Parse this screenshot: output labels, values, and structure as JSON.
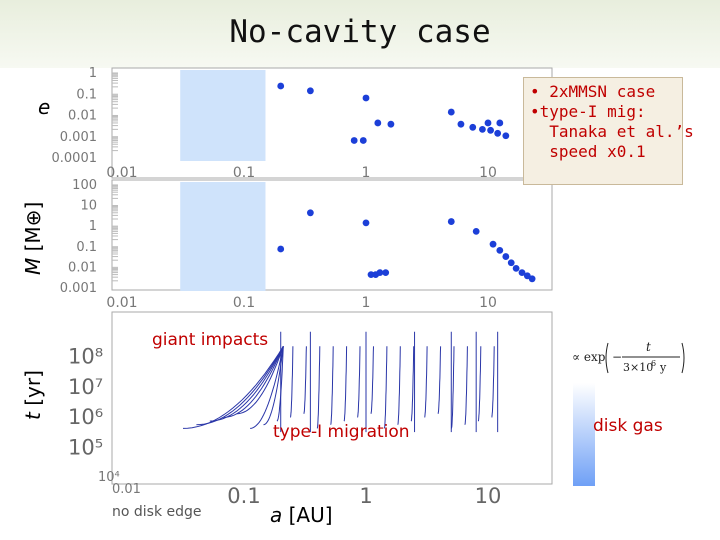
{
  "title": "No-cavity case",
  "note": [
    "• 2xMMSN case",
    "•type-I mig:",
    "  Tanaka et al.’s",
    "  speed x0.1"
  ],
  "labels": {
    "e": "e",
    "m_var": "M ",
    "m_unit": "[M⊕]",
    "t_var": "t ",
    "t_unit": "[yr]",
    "x_var": "a ",
    "x_unit": "[AU]"
  },
  "annotations": {
    "giant_impacts": "giant impacts",
    "type_i_migration": "type-I migration",
    "disk_gas": "disk gas",
    "no_disk_edge": "no disk edge"
  },
  "chart_data": [
    {
      "type": "scatter",
      "panel": "eccentricity",
      "ylabel": "e",
      "xscale": "log",
      "yscale": "log",
      "xlim": [
        0.01,
        50
      ],
      "ylim": [
        0.0001,
        1
      ],
      "xticks": [
        "0.01",
        "0.1",
        "1",
        "10"
      ],
      "yticks": [
        "1",
        "0.1",
        "0.01",
        "0.001",
        "0.0001"
      ],
      "shaded_xrange": [
        0.03,
        0.15
      ],
      "points": [
        [
          0.2,
          0.22
        ],
        [
          0.35,
          0.13
        ],
        [
          1.0,
          0.06
        ],
        [
          1.25,
          0.004
        ],
        [
          1.6,
          0.0035
        ],
        [
          0.8,
          0.0006
        ],
        [
          0.95,
          0.0006
        ],
        [
          5,
          0.013
        ],
        [
          6,
          0.0035
        ],
        [
          7.5,
          0.0025
        ],
        [
          9,
          0.002
        ],
        [
          10.5,
          0.0018
        ],
        [
          12,
          0.0013
        ],
        [
          14,
          0.001
        ],
        [
          10,
          0.004
        ],
        [
          12.5,
          0.004
        ]
      ]
    },
    {
      "type": "scatter",
      "panel": "mass",
      "ylabel": "M [M⊕]",
      "xscale": "log",
      "yscale": "log",
      "xlim": [
        0.01,
        50
      ],
      "ylim": [
        0.001,
        100
      ],
      "xticks": [
        "0.01",
        "0.1",
        "1",
        "10"
      ],
      "yticks": [
        "100",
        "10",
        "1",
        "0.1",
        "0.01",
        "0.001"
      ],
      "shaded_xrange": [
        0.03,
        0.15
      ],
      "points": [
        [
          0.2,
          0.07
        ],
        [
          0.35,
          4
        ],
        [
          1.0,
          1.3
        ],
        [
          1.1,
          0.004
        ],
        [
          1.2,
          0.004
        ],
        [
          1.3,
          0.005
        ],
        [
          1.45,
          0.005
        ],
        [
          5,
          1.5
        ],
        [
          8,
          0.5
        ],
        [
          11,
          0.12
        ],
        [
          12.5,
          0.06
        ],
        [
          14,
          0.03
        ],
        [
          15.5,
          0.015
        ],
        [
          17,
          0.008
        ],
        [
          19,
          0.005
        ],
        [
          21,
          0.0035
        ],
        [
          23,
          0.0025
        ]
      ]
    },
    {
      "type": "line",
      "panel": "time",
      "ylabel": "t [yr]",
      "xlabel": "a [AU]",
      "xscale": "log",
      "yscale": "log",
      "xlim": [
        0.01,
        50
      ],
      "ylim": [
        10000,
        1000000000
      ],
      "xticks": [
        "0.1",
        "1",
        "10"
      ],
      "xtick_values": [
        0.1,
        1,
        10
      ],
      "first_xtick_small": "0.01",
      "yticks": [
        "10⁸",
        "10⁷",
        "10⁶",
        "10⁵",
        "10⁴"
      ],
      "ytick_values": [
        100000000,
        10000000,
        1000000,
        100000,
        10000
      ],
      "series_count": 24
    }
  ]
}
